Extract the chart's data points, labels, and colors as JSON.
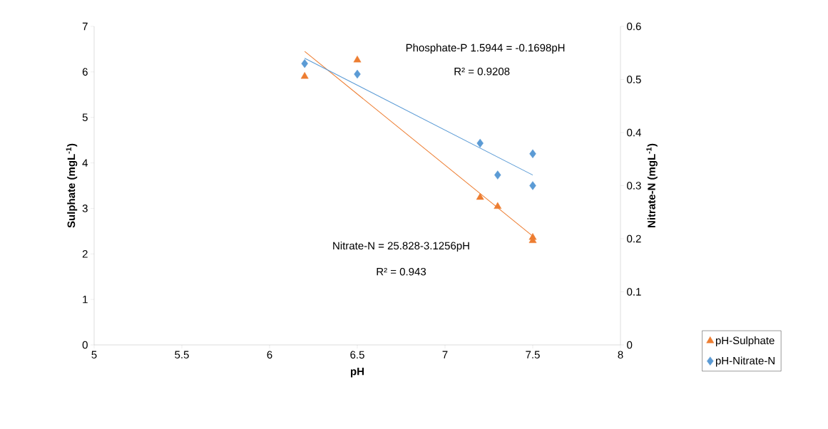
{
  "chart_data": {
    "type": "scatter",
    "xlabel": "pH",
    "ylabel": "Sulphate (mgL$^{-1}$)",
    "y2label": "Nitrate-N (mgL$^{-1}$)",
    "xlim": [
      5,
      8
    ],
    "xticks": [
      5,
      5.5,
      6,
      6.5,
      7,
      7.5,
      8
    ],
    "ylim": [
      0,
      7
    ],
    "yticks": [
      0,
      1,
      2,
      3,
      4,
      5,
      6,
      7
    ],
    "y2lim": [
      0,
      0.6
    ],
    "y2ticks": [
      0,
      0.1,
      0.2,
      0.3,
      0.4,
      0.5,
      0.6
    ],
    "legend": "bottom right",
    "annotations": [
      "Phosphate-P 1.5944 = -0.1698pH",
      "R² = 0.9208",
      "Nitrate-N = 25.828-3.1256pH",
      "R² = 0.943"
    ],
    "series": [
      {
        "name": "pH-Sulphate",
        "color": "#ed7d31",
        "marker": "triangle",
        "x": [
          6.2,
          6.5,
          7.2,
          7.3,
          7.5,
          7.5
        ],
        "values": [
          5.9,
          6.26,
          3.24,
          3.04,
          2.36,
          2.29
        ]
      },
      {
        "name": "pH-Nitrate-N",
        "axis": "y2",
        "color": "#5b9bd5",
        "marker": "diamond",
        "x": [
          6.2,
          6.5,
          7.2,
          7.3,
          7.5,
          7.5
        ],
        "values": [
          0.53,
          0.51,
          0.38,
          0.32,
          0.36,
          0.3
        ]
      },
      {
        "type": "line",
        "color": "#ed7d31",
        "marker": "none",
        "x": [
          6.2,
          7.5
        ],
        "values": [
          6.45,
          2.39
        ]
      },
      {
        "type": "line",
        "axis": "y2",
        "color": "#5b9bd5",
        "marker": "none",
        "x": [
          6.2,
          7.5
        ],
        "values": [
          0.54,
          0.32
        ]
      }
    ]
  }
}
